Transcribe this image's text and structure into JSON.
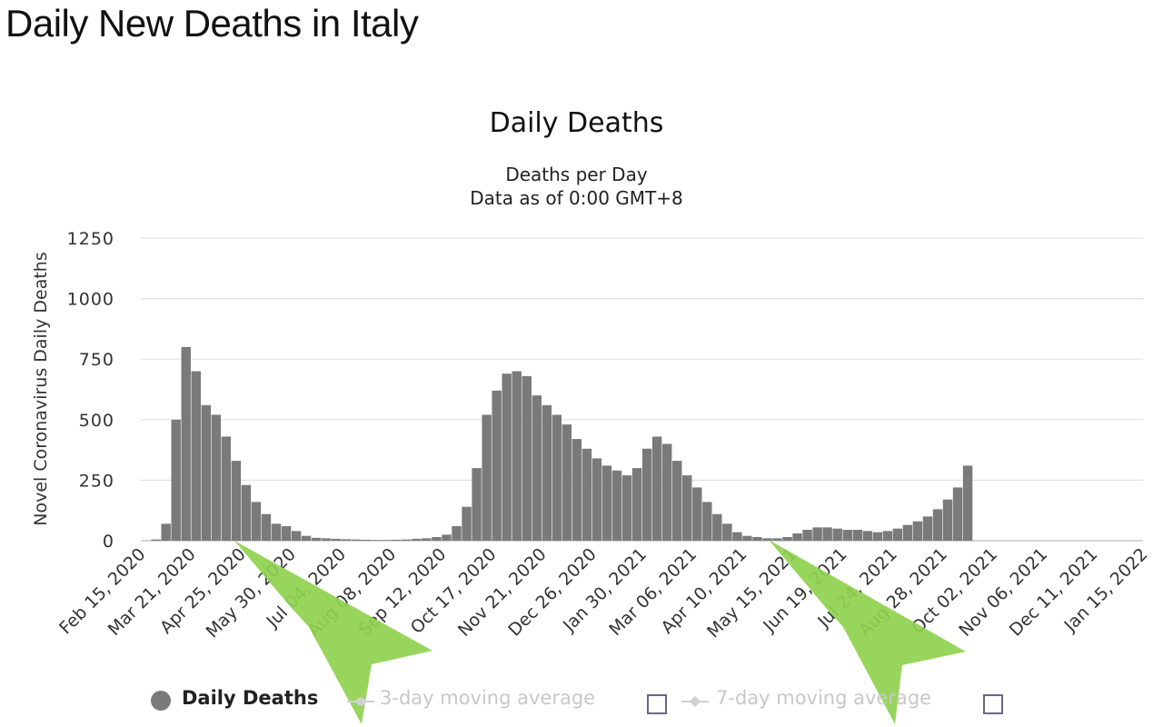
{
  "page_title": "Daily New Deaths in Italy",
  "chart_data": {
    "type": "bar",
    "title": "Daily Deaths",
    "subtitle_lines": [
      "Deaths per Day",
      "Data as of 0:00 GMT+8"
    ],
    "ylabel": "Novel Coronavirus Daily Deaths",
    "xlabel": "",
    "ylim": [
      0,
      1250
    ],
    "yticks": [
      0,
      250,
      500,
      750,
      1000,
      1250
    ],
    "xtick_labels": [
      "Feb 15, 2020",
      "Mar 21, 2020",
      "Apr 25, 2020",
      "May 30, 2020",
      "Jul 04, 2020",
      "Aug 08, 2020",
      "Sep 12, 2020",
      "Oct 17, 2020",
      "Nov 21, 2020",
      "Dec 26, 2020",
      "Jan 30, 2021",
      "Mar 06, 2021",
      "Apr 10, 2021",
      "May 15, 2021",
      "Jun 19, 2021",
      "Jul 24, 2021",
      "Aug 28, 2021",
      "Oct 02, 2021",
      "Nov 06, 2021",
      "Dec 11, 2021",
      "Jan 15, 2022"
    ],
    "grid": true,
    "bar_color": "#7a7a7a",
    "series": [
      {
        "name": "Daily Deaths",
        "weekly_start": "Feb 15, 2020",
        "weekly_step_days": 7,
        "weekly_values": [
          0,
          5,
          70,
          500,
          800,
          700,
          560,
          520,
          430,
          330,
          230,
          160,
          110,
          70,
          60,
          40,
          20,
          12,
          10,
          8,
          6,
          5,
          4,
          3,
          3,
          4,
          5,
          8,
          10,
          15,
          25,
          60,
          140,
          300,
          520,
          620,
          690,
          700,
          680,
          600,
          560,
          520,
          480,
          420,
          380,
          340,
          310,
          290,
          270,
          300,
          380,
          430,
          400,
          330,
          270,
          220,
          160,
          110,
          70,
          35,
          20,
          15,
          10,
          10,
          15,
          30,
          45,
          55,
          55,
          50,
          45,
          45,
          40,
          35,
          40,
          50,
          65,
          80,
          100,
          130,
          170,
          220,
          310
        ]
      }
    ],
    "legend": [
      {
        "label": "Daily Deaths",
        "active": true
      },
      {
        "label": "3-day moving average",
        "active": false
      },
      {
        "label": "7-day moving average",
        "active": false
      }
    ],
    "legend_position": "bottom",
    "annotation_color": "#8fd14f"
  }
}
